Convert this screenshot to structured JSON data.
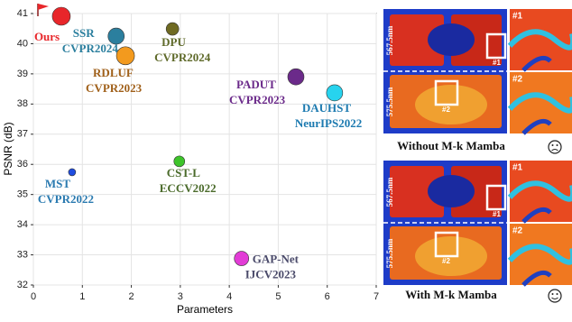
{
  "chart_data": {
    "type": "scatter",
    "xlabel": "Parameters",
    "ylabel": "PSNR (dB)",
    "xlim": [
      0,
      7
    ],
    "ylim": [
      32,
      41
    ],
    "xticks": [
      0,
      1,
      2,
      3,
      4,
      5,
      6,
      7
    ],
    "yticks": [
      32,
      33,
      34,
      35,
      36,
      37,
      38,
      39,
      40,
      41
    ],
    "grid": true,
    "series": [
      {
        "name": "Ours",
        "color": "#e8262a",
        "label_color": "#e8262a",
        "x": [
          0.57
        ],
        "values": [
          40.91
        ],
        "sizes": [
          10
        ]
      },
      {
        "name": "SSR",
        "venue": "CVPR2024",
        "color": "#2b7f9e",
        "label_color": "#2b7f9e",
        "x": [
          1.69
        ],
        "values": [
          40.25
        ],
        "sizes": [
          9
        ]
      },
      {
        "name": "RDLUF",
        "venue": "CVPR2023",
        "color": "#f39a1e",
        "label_color": "#a0601a",
        "x": [
          1.88
        ],
        "values": [
          39.6
        ],
        "sizes": [
          10
        ]
      },
      {
        "name": "DPU",
        "venue": "CVPR2024",
        "color": "#6f6a22",
        "label_color": "#5f6a2a",
        "x": [
          2.84
        ],
        "values": [
          40.49
        ],
        "sizes": [
          7
        ]
      },
      {
        "name": "PADUT",
        "venue": "CVPR2023",
        "color": "#6b2a8a",
        "label_color": "#6b2a8a",
        "x": [
          5.36
        ],
        "values": [
          38.9
        ],
        "sizes": [
          9
        ]
      },
      {
        "name": "DAUHST",
        "venue": "NeurIPS2022",
        "color": "#27d3ee",
        "label_color": "#1c7ab0",
        "x": [
          6.15
        ],
        "values": [
          38.37
        ],
        "sizes": [
          9
        ]
      },
      {
        "name": "MST",
        "venue": "CVPR2022",
        "color": "#1f4de0",
        "label_color": "#2a7ab0",
        "x": [
          0.79
        ],
        "values": [
          35.74
        ],
        "sizes": [
          4
        ]
      },
      {
        "name": "CST-L",
        "venue": "ECCV2022",
        "color": "#3dc42a",
        "label_color": "#4a6a2a",
        "x": [
          2.98
        ],
        "values": [
          36.1
        ],
        "sizes": [
          6
        ]
      },
      {
        "name": "GAP-Net",
        "venue": "IJCV2023",
        "color": "#e23cd6",
        "label_color": "#4a4a6a",
        "x": [
          4.25
        ],
        "values": [
          32.88
        ],
        "sizes": [
          8
        ]
      }
    ]
  },
  "panels": [
    {
      "caption": "Without M-k Mamba",
      "bands": [
        "567.5nm",
        "575.5nm"
      ],
      "zooms": [
        "#1",
        "#2"
      ]
    },
    {
      "caption": "With M-k Mamba",
      "bands": [
        "567.5nm",
        "575.5nm"
      ],
      "zooms": [
        "#1",
        "#2"
      ]
    }
  ]
}
